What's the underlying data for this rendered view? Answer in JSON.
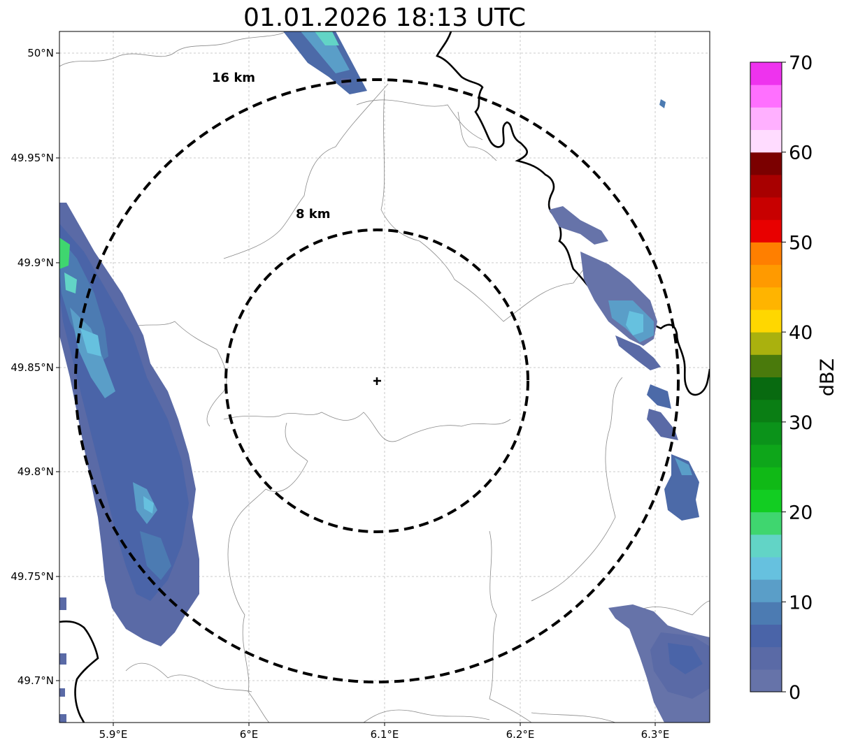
{
  "title": "01.01.2026 18:13 UTC",
  "map": {
    "lon_range": [
      5.86,
      6.34
    ],
    "lat_range": [
      49.68,
      50.01
    ],
    "radar_center": {
      "lon": 6.095,
      "lat": 49.843
    },
    "x_ticks": [
      "5.9°E",
      "6°E",
      "6.1°E",
      "6.2°E",
      "6.3°E"
    ],
    "y_ticks": [
      "50°N",
      "49.95°N",
      "49.9°N",
      "49.85°N",
      "49.8°N",
      "49.75°N",
      "49.7°N"
    ],
    "gridlines": true,
    "ring_labels": [
      "8 km",
      "16 km"
    ],
    "center_marker": "plus-icon"
  },
  "colorbar": {
    "label": "dBZ",
    "ticks": [
      "0",
      "10",
      "20",
      "30",
      "40",
      "50",
      "60",
      "70"
    ],
    "colors": [
      "#6673a9",
      "#5a6aa6",
      "#4a64a8",
      "#4c7bb2",
      "#5a9ec8",
      "#66c1df",
      "#62d4c6",
      "#3fd66f",
      "#12cd22",
      "#10b916",
      "#0ea61a",
      "#0b931a",
      "#0a7e14",
      "#086a10",
      "#4a7a0c",
      "#aab10e",
      "#ffd700",
      "#ffb400",
      "#ff9a00",
      "#ff7f00",
      "#e80000",
      "#c80000",
      "#a80000",
      "#7b0000",
      "#ffdcff",
      "#ffb0ff",
      "#ff70ff",
      "#ee33ee"
    ],
    "accent_outline": "#000000"
  }
}
